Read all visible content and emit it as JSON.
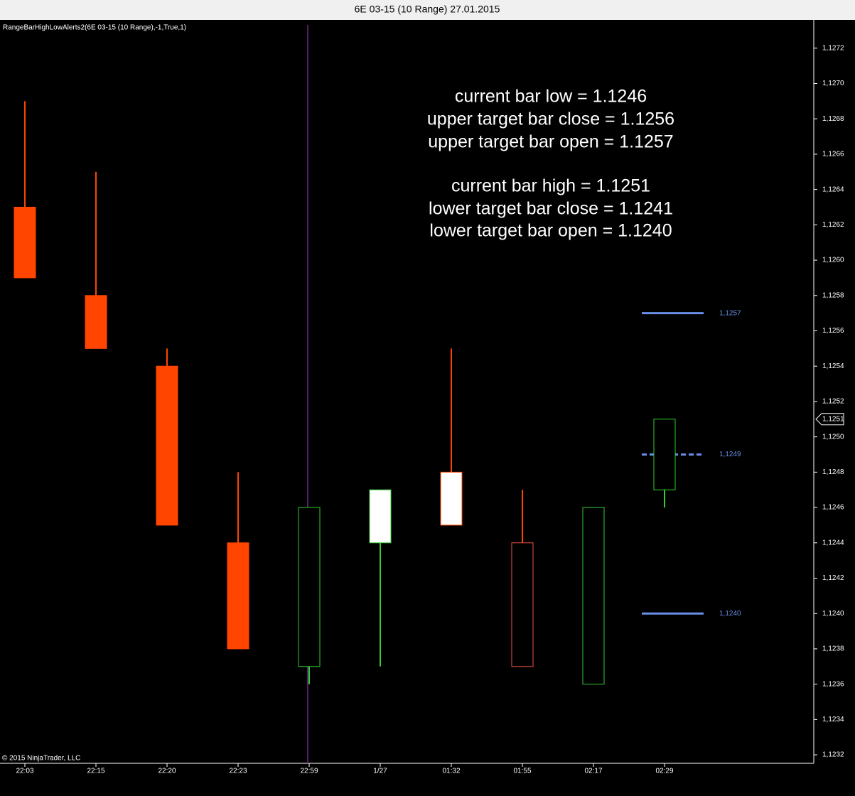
{
  "chart_data": {
    "type": "candlestick",
    "title": "6E 03-15 (10 Range)  27.01.2015",
    "indicator_label": "RangeBarHighLowAlerts2(6E 03-15 (10 Range),-1,True,1)",
    "copyright": "© 2015 NinjaTrader, LLC",
    "annotations": [
      "current bar low = 1.1246",
      "upper target bar close = 1.1256",
      "upper target bar open = 1.1257",
      "current bar high = 1.1251",
      "lower target bar close = 1.1241",
      "lower target bar open = 1.1240"
    ],
    "categories": [
      "22:03",
      "22:15",
      "22:20",
      "22:23",
      "22:59",
      "1/27",
      "01:32",
      "01:55",
      "02:17",
      "02:29"
    ],
    "open": [
      1.1263,
      1.1258,
      1.1254,
      1.1244,
      1.1237,
      1.1244,
      1.1245,
      1.1244,
      1.1236,
      1.1247
    ],
    "high": [
      1.1269,
      1.1265,
      1.1255,
      1.1248,
      1.1246,
      1.1247,
      1.1255,
      1.1247,
      1.1246,
      1.1251
    ],
    "low": [
      1.1259,
      1.1255,
      1.1245,
      1.1238,
      1.1236,
      1.1237,
      1.1245,
      1.1237,
      1.1236,
      1.1246
    ],
    "close": [
      1.1259,
      1.1255,
      1.1245,
      1.1238,
      1.1246,
      1.1247,
      1.1248,
      1.1237,
      1.1246,
      1.1251
    ],
    "styles": [
      {
        "body": "#FF4500",
        "outline": "#FF4500",
        "wick": "#FF4500"
      },
      {
        "body": "#FF4500",
        "outline": "#FF4500",
        "wick": "#FF4500"
      },
      {
        "body": "#FF4500",
        "outline": "#FF4500",
        "wick": "#FF4500"
      },
      {
        "body": "#FF4500",
        "outline": "#FF4500",
        "wick": "#FF4500"
      },
      {
        "body": "none",
        "outline": "#32CD32",
        "wick": "#32CD32"
      },
      {
        "body": "#FFFFFF",
        "outline": "#32CD32",
        "wick": "#32CD32"
      },
      {
        "body": "#FFFFFF",
        "outline": "#FF4500",
        "wick": "#FF4500"
      },
      {
        "body": "none",
        "outline": "#F05040",
        "wick": "#FF4500"
      },
      {
        "body": "none",
        "outline": "#32CD32",
        "wick": "#32CD32"
      },
      {
        "body": "none",
        "outline": "#32CD32",
        "wick": "#32CD32"
      }
    ],
    "levels": [
      {
        "value": 1.1257,
        "label": "1,1257",
        "style": "solid"
      },
      {
        "value": 1.1249,
        "label": "1,1249",
        "style": "dashed"
      },
      {
        "value": 1.124,
        "label": "1,1240",
        "style": "solid"
      }
    ],
    "level_color": "#6A8FE8",
    "last_price": {
      "value": 1.1251,
      "label": "1,1251"
    },
    "ylim": [
      1.12316,
      1.12736
    ],
    "yticks": [
      {
        "value": 1.1232,
        "label": "1,1232"
      },
      {
        "value": 1.1234,
        "label": "1,1234"
      },
      {
        "value": 1.1236,
        "label": "1,1236"
      },
      {
        "value": 1.1238,
        "label": "1,1238"
      },
      {
        "value": 1.124,
        "label": "1,1240"
      },
      {
        "value": 1.1242,
        "label": "1,1242"
      },
      {
        "value": 1.1244,
        "label": "1,1244"
      },
      {
        "value": 1.1246,
        "label": "1,1246"
      },
      {
        "value": 1.1248,
        "label": "1,1248"
      },
      {
        "value": 1.125,
        "label": "1,1250"
      },
      {
        "value": 1.1252,
        "label": "1,1252"
      },
      {
        "value": 1.1254,
        "label": "1,1254"
      },
      {
        "value": 1.1256,
        "label": "1,1256"
      },
      {
        "value": 1.1258,
        "label": "1,1258"
      },
      {
        "value": 1.126,
        "label": "1,1260"
      },
      {
        "value": 1.1262,
        "label": "1,1262"
      },
      {
        "value": 1.1264,
        "label": "1,1264"
      },
      {
        "value": 1.1266,
        "label": "1,1266"
      },
      {
        "value": 1.1268,
        "label": "1,1268"
      },
      {
        "value": 1.127,
        "label": "1,1270"
      },
      {
        "value": 1.1272,
        "label": "1,1272"
      }
    ]
  }
}
